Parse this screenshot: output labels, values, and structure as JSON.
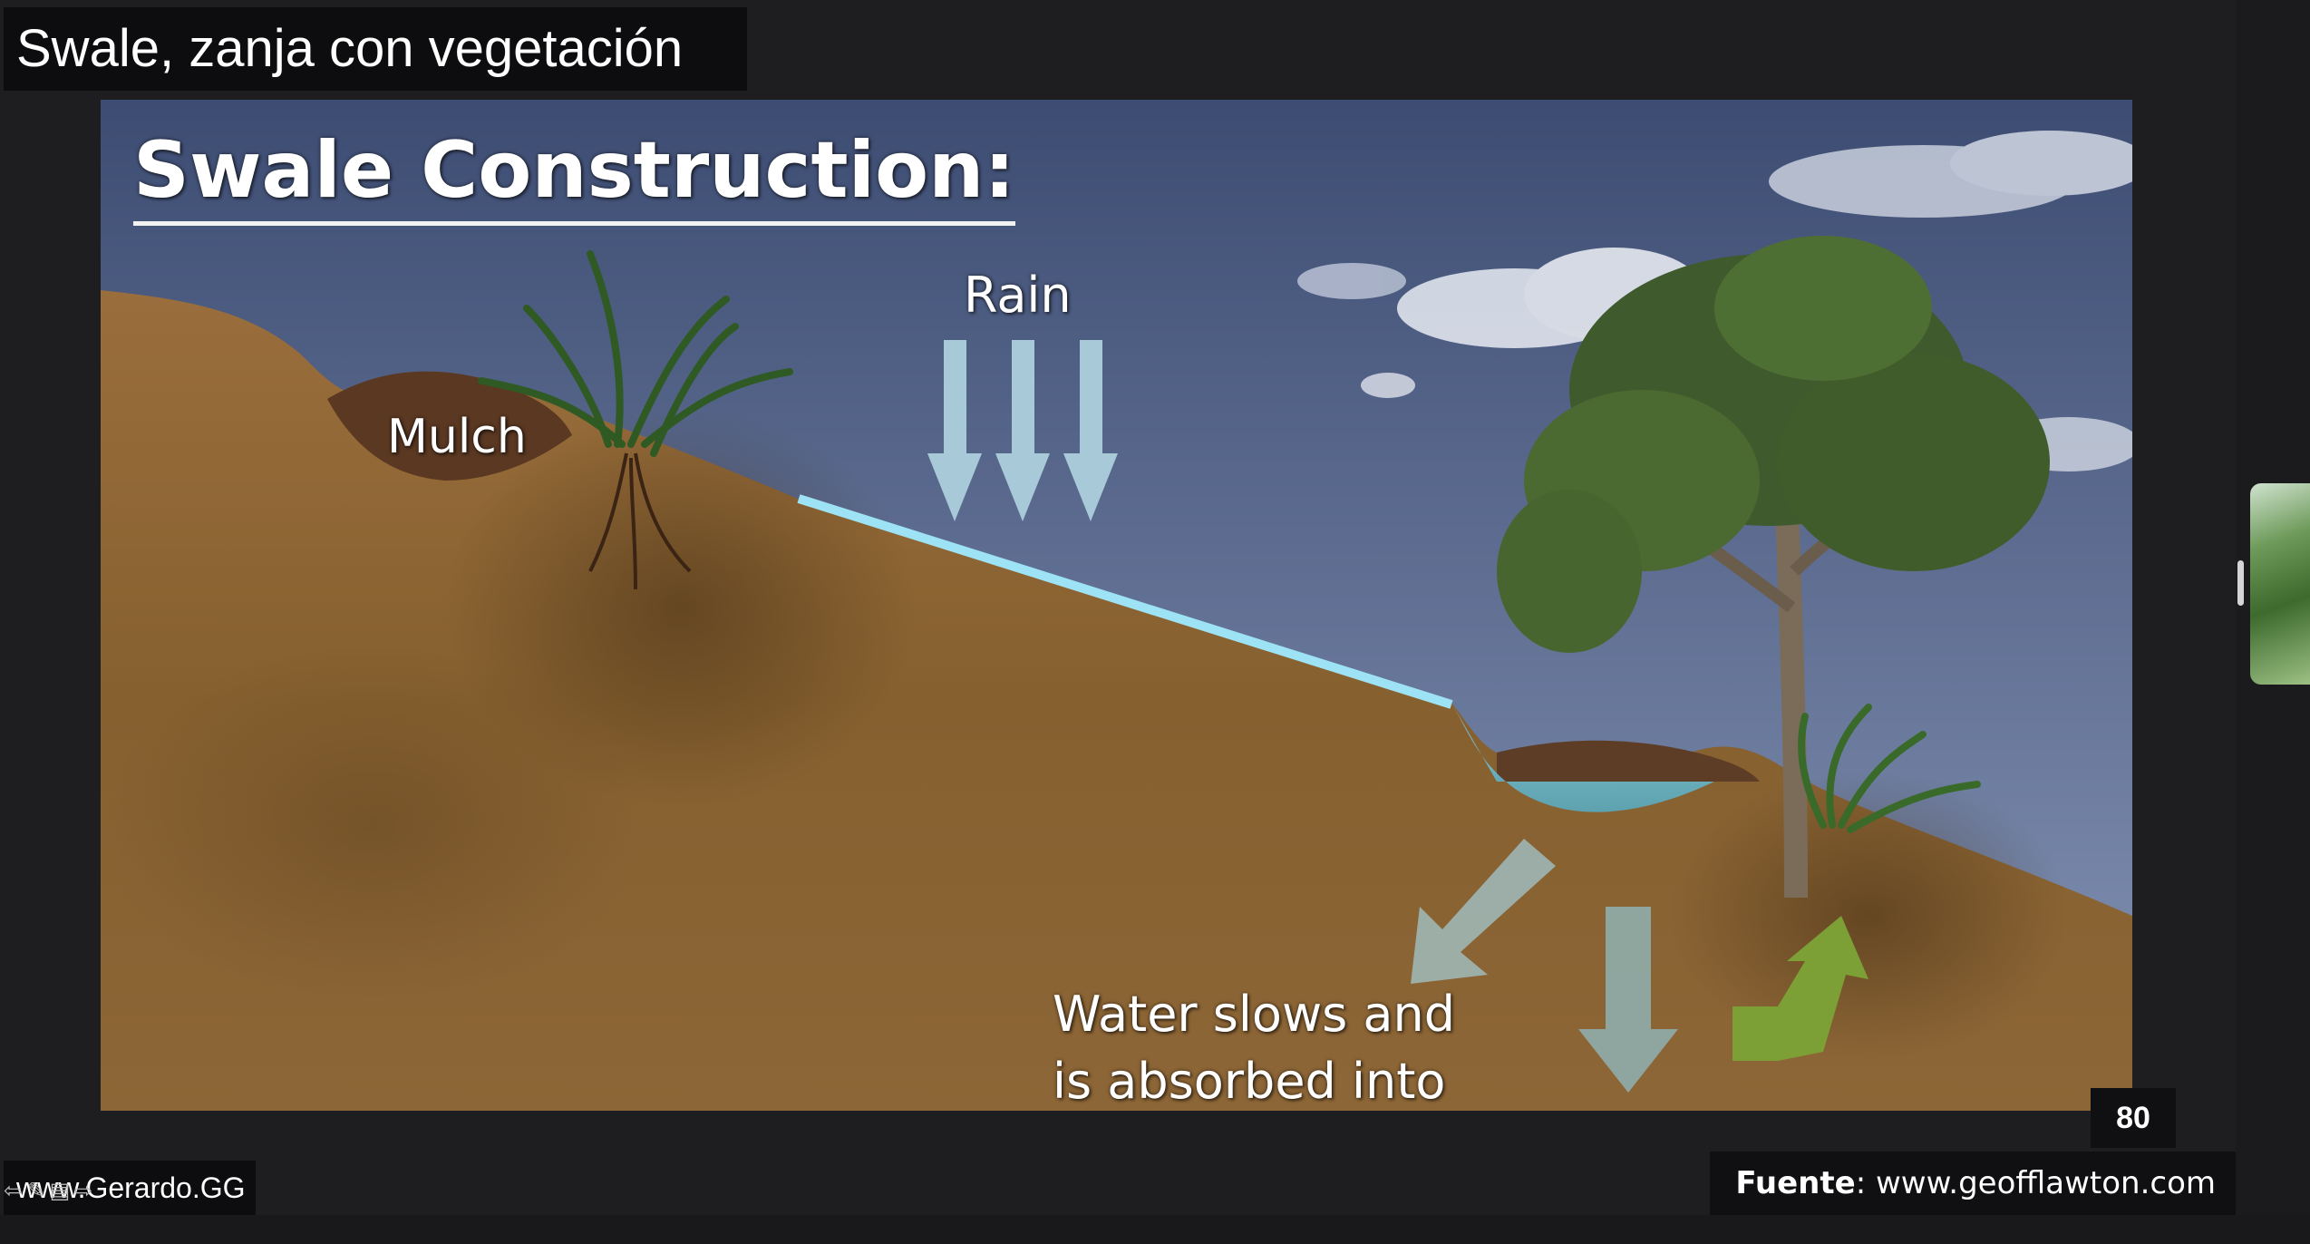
{
  "slide": {
    "title": "Swale, zanja con vegetación",
    "page_number": "80",
    "watermark": "www.Gerardo.GG",
    "source_label": "Fuente",
    "source_url": ": www.geofflawton.com"
  },
  "illustration": {
    "heading": "Swale Construction:",
    "rain_label": "Rain",
    "mulch_label": "Mulch",
    "water_caption": "Water slows and is absorbed into soil"
  },
  "nav_controls": [
    {
      "icon": "arrow-left-icon",
      "glyph": "⇦"
    },
    {
      "icon": "pen-icon",
      "glyph": "✎"
    },
    {
      "icon": "grid-icon",
      "glyph": "▤"
    },
    {
      "icon": "arrow-right-icon",
      "glyph": "⇨"
    }
  ],
  "colors": {
    "sky_top": "#3f4f75",
    "sky_bottom": "#7e8fb2",
    "soil": "#8a6235",
    "water": "#8fd7ea",
    "arrow_rain": "#a6c8d6",
    "arrow_green": "#7da036"
  }
}
